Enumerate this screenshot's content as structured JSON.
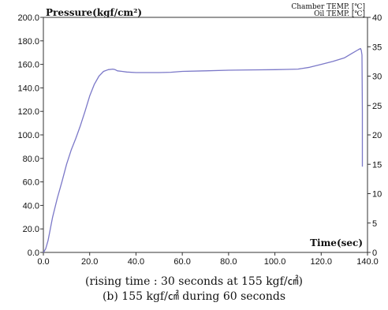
{
  "chart_data": {
    "type": "line",
    "title": "",
    "ylabel": "Pressure(kgf/cm²)",
    "xlabel": "Time(sec)",
    "ylabel_right_1": "Chamber TEMP. [℃]",
    "ylabel_right_2": "Oil TEMP. [℃]",
    "xlim": [
      0,
      140
    ],
    "ylim": [
      0,
      200
    ],
    "ylim_right": [
      0,
      40
    ],
    "x_ticks": [
      "0.0",
      "20.0",
      "40.0",
      "60.0",
      "80.0",
      "100.0",
      "120.0",
      "140.0"
    ],
    "y_ticks": [
      "0.0",
      "20.0",
      "40.0",
      "60.0",
      "80.0",
      "100.0",
      "120.0",
      "140.0",
      "160.0",
      "180.0",
      "200.0"
    ],
    "y_right_ticks": [
      "0",
      "5",
      "10",
      "15",
      "20",
      "25",
      "30",
      "35",
      "40"
    ],
    "grid": false,
    "series": [
      {
        "color": "#7b78c8",
        "x": [
          0,
          1,
          2,
          3,
          4,
          6,
          8,
          10,
          12,
          14,
          16,
          18,
          20,
          22,
          24,
          26,
          28,
          30,
          31,
          32,
          34,
          36,
          40,
          50,
          55,
          60,
          70,
          80,
          90,
          100,
          105,
          110,
          115,
          120,
          125,
          130,
          133,
          136,
          137,
          137.3,
          137.6,
          137.8,
          137.8
        ],
        "y": [
          0,
          3,
          10,
          20,
          30,
          46,
          60,
          75,
          87,
          97,
          108,
          120,
          133,
          143,
          150,
          154,
          155.5,
          156,
          155.5,
          154.5,
          154,
          153.5,
          153,
          153,
          153.3,
          154,
          154.5,
          155,
          155.3,
          155.5,
          155.7,
          156,
          157.5,
          160,
          162.5,
          165.5,
          169,
          172.5,
          173.5,
          172,
          168,
          120,
          73
        ]
      }
    ]
  },
  "caption": {
    "line1": "(rising time : 30 seconds at 155 kgf/㎠)",
    "line2": "(b) 155 kgf/㎠ during 60 seconds"
  }
}
